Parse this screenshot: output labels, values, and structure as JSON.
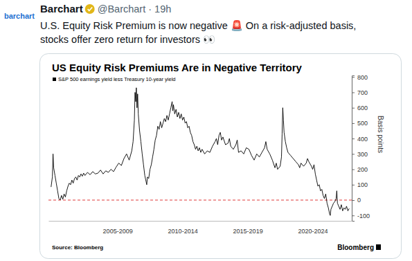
{
  "tweet": {
    "avatar_text": "barchart",
    "name": "Barchart",
    "handle_line": "@Barchart · 19h",
    "text_lines": [
      "U.S. Equity Risk Premium is now negative 🚨 On a risk-adjusted basis,",
      "stocks offer zero return for investors 👀"
    ]
  },
  "chart_data": {
    "type": "line",
    "title": "US Equity Risk Premiums Are in Negative Territory",
    "ylabel": "Basis points",
    "source": "Source: Bloomberg",
    "logo": "Bloomberg",
    "legend": "top-left",
    "grid": false,
    "x": [
      2002.4,
      2002.5,
      2002.55,
      2002.6,
      2002.7,
      2002.8,
      2002.9,
      2003,
      2003.1,
      2003.2,
      2003.3,
      2003.4,
      2003.5,
      2003.6,
      2003.7,
      2003.8,
      2003.9,
      2004,
      2004.1,
      2004.2,
      2004.3,
      2004.4,
      2004.5,
      2004.6,
      2004.7,
      2004.8,
      2004.9,
      2005,
      2005.2,
      2005.4,
      2005.6,
      2005.8,
      2006,
      2006.2,
      2006.4,
      2006.6,
      2006.8,
      2007,
      2007.2,
      2007.4,
      2007.6,
      2007.8,
      2008,
      2008.2,
      2008.4,
      2008.6,
      2008.7,
      2008.8,
      2008.85,
      2008.9,
      2008.95,
      2009,
      2009.05,
      2009.1,
      2009.2,
      2009.3,
      2009.4,
      2009.5,
      2009.6,
      2009.7,
      2009.75,
      2009.8,
      2009.9,
      2010,
      2010.1,
      2010.2,
      2010.3,
      2010.4,
      2010.5,
      2010.6,
      2010.7,
      2010.8,
      2010.9,
      2011,
      2011.1,
      2011.2,
      2011.3,
      2011.4,
      2011.5,
      2011.6,
      2011.7,
      2011.75,
      2011.8,
      2011.9,
      2012,
      2012.1,
      2012.2,
      2012.3,
      2012.4,
      2012.5,
      2012.6,
      2012.7,
      2012.8,
      2012.9,
      2013,
      2013.1,
      2013.2,
      2013.3,
      2013.4,
      2013.5,
      2013.6,
      2013.7,
      2013.8,
      2013.9,
      2014,
      2014.2,
      2014.4,
      2014.6,
      2014.8,
      2015,
      2015.1,
      2015.2,
      2015.3,
      2015.4,
      2015.5,
      2015.6,
      2015.8,
      2016,
      2016.1,
      2016.2,
      2016.4,
      2016.6,
      2016.7,
      2016.8,
      2017,
      2017.2,
      2017.4,
      2017.6,
      2017.8,
      2018,
      2018.2,
      2018.4,
      2018.6,
      2018.8,
      2018.9,
      2019,
      2019.2,
      2019.4,
      2019.6,
      2019.7,
      2019.8,
      2020,
      2020.1,
      2020.15,
      2020.2,
      2020.25,
      2020.3,
      2020.4,
      2020.5,
      2020.6,
      2020.8,
      2021,
      2021.2,
      2021.4,
      2021.5,
      2021.6,
      2021.8,
      2022,
      2022.1,
      2022.2,
      2022.4,
      2022.5,
      2022.6,
      2022.7,
      2022.8,
      2022.9,
      2023,
      2023.1,
      2023.2,
      2023.3,
      2023.4,
      2023.5,
      2023.6,
      2023.7,
      2023.8,
      2023.85,
      2023.9,
      2024,
      2024.1,
      2024.2,
      2024.3,
      2024.35,
      2024.4,
      2024.5,
      2024.6,
      2024.7,
      2024.8,
      2024.9,
      2025,
      2025.1,
      2025.2,
      2025.3
    ],
    "series": [
      {
        "name": "S&P 500 earnings yield less Treasury 10-year yield",
        "color": "#000000",
        "values": [
          85,
          150,
          300,
          210,
          160,
          110,
          60,
          10,
          0,
          30,
          5,
          40,
          20,
          60,
          90,
          110,
          100,
          130,
          110,
          140,
          150,
          130,
          160,
          150,
          170,
          155,
          175,
          160,
          180,
          165,
          185,
          170,
          175,
          195,
          170,
          190,
          180,
          200,
          185,
          215,
          240,
          225,
          270,
          300,
          260,
          320,
          380,
          520,
          700,
          640,
          730,
          600,
          690,
          560,
          450,
          380,
          300,
          230,
          160,
          120,
          100,
          150,
          140,
          200,
          230,
          280,
          330,
          390,
          420,
          480,
          460,
          510,
          470,
          500,
          530,
          510,
          550,
          520,
          560,
          600,
          640,
          580,
          620,
          560,
          590,
          540,
          570,
          530,
          560,
          520,
          540,
          500,
          510,
          470,
          480,
          440,
          420,
          380,
          360,
          330,
          350,
          320,
          340,
          310,
          330,
          300,
          320,
          310,
          350,
          380,
          400,
          360,
          420,
          440,
          390,
          410,
          360,
          370,
          400,
          350,
          330,
          360,
          390,
          310,
          320,
          300,
          340,
          330,
          290,
          260,
          300,
          280,
          310,
          340,
          380,
          330,
          300,
          260,
          210,
          240,
          200,
          220,
          280,
          430,
          600,
          520,
          440,
          380,
          340,
          310,
          290,
          270,
          250,
          230,
          210,
          240,
          220,
          240,
          270,
          250,
          220,
          200,
          230,
          170,
          130,
          90,
          100,
          60,
          70,
          30,
          10,
          40,
          -20,
          -50,
          -90,
          -100,
          -60,
          -40,
          -20,
          -10,
          10,
          60,
          -20,
          -40,
          -60,
          -30,
          -70,
          -50,
          -60,
          -40,
          -70,
          -55
        ]
      }
    ],
    "hlines": [
      {
        "value": 0,
        "color": "#e03a3a",
        "line_style": "dashed"
      }
    ],
    "xlim": [
      2002.2,
      2025.5
    ],
    "xticks": [
      {
        "value": 2007.5,
        "label": "2005-2009"
      },
      {
        "value": 2012.5,
        "label": "2010-2014"
      },
      {
        "value": 2017.5,
        "label": "2015-2019"
      },
      {
        "value": 2022.5,
        "label": "2020-2024"
      }
    ],
    "ylim": [
      -135,
      810
    ],
    "yticks": [
      -100,
      0,
      100,
      200,
      300,
      400,
      500,
      600,
      700,
      800
    ]
  }
}
